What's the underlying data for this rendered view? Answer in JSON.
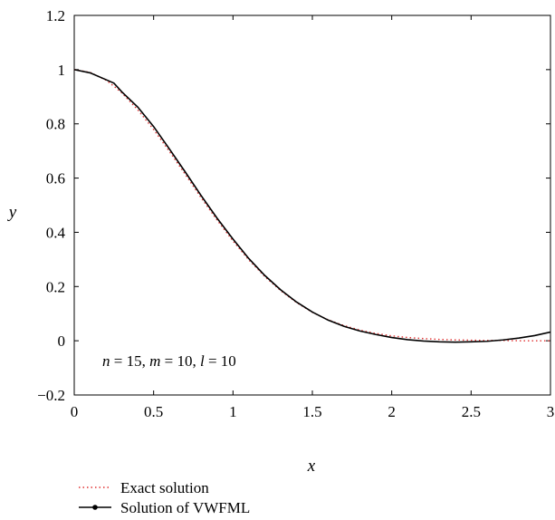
{
  "chart_data": {
    "type": "line",
    "xlabel": "x",
    "ylabel": "y",
    "xlim": [
      0,
      3
    ],
    "ylim": [
      -0.2,
      1.2
    ],
    "x_ticks": [
      "0",
      "0.5",
      "1",
      "1.5",
      "2",
      "2.5",
      "3"
    ],
    "y_ticks": [
      "1.2",
      "1",
      "0.8",
      "0.6",
      "0.4",
      "0.2",
      "0",
      "−0.2"
    ],
    "grid": false,
    "legend_position": "bottom-left, below plot",
    "annotation": {
      "parts": [
        {
          "text": "n",
          "italic": true
        },
        {
          "text": " = 15, ",
          "italic": false
        },
        {
          "text": "m",
          "italic": true
        },
        {
          "text": " = 10, ",
          "italic": false
        },
        {
          "text": "l",
          "italic": true
        },
        {
          "text": " = 10",
          "italic": false
        }
      ]
    },
    "series": [
      {
        "name": "Exact solution",
        "color": "#e03030",
        "style": "dotted",
        "x": [
          0,
          0.1,
          0.2,
          0.25,
          0.3,
          0.4,
          0.5,
          0.6,
          0.7,
          0.8,
          0.9,
          1.0,
          1.1,
          1.2,
          1.3,
          1.4,
          1.5,
          1.6,
          1.7,
          1.8,
          1.9,
          2.0,
          2.1,
          2.2,
          2.3,
          2.4,
          2.5,
          2.6,
          2.7,
          2.8,
          2.9,
          3.0
        ],
        "values": [
          1.0,
          0.99,
          0.961,
          0.939,
          0.914,
          0.852,
          0.779,
          0.698,
          0.613,
          0.527,
          0.445,
          0.368,
          0.298,
          0.237,
          0.185,
          0.141,
          0.105,
          0.077,
          0.056,
          0.039,
          0.027,
          0.018,
          0.012,
          0.008,
          0.005,
          0.003,
          0.002,
          0.001,
          0.001,
          0.0,
          0.0,
          0.0
        ]
      },
      {
        "name": "Solution of VWFML",
        "color": "#000000",
        "style": "solid",
        "x": [
          0,
          0.1,
          0.2,
          0.25,
          0.3,
          0.4,
          0.5,
          0.6,
          0.7,
          0.8,
          0.9,
          1.0,
          1.1,
          1.2,
          1.3,
          1.4,
          1.5,
          1.6,
          1.7,
          1.8,
          1.9,
          2.0,
          2.1,
          2.2,
          2.3,
          2.4,
          2.5,
          2.6,
          2.7,
          2.8,
          2.9,
          3.0
        ],
        "values": [
          1.0,
          0.988,
          0.963,
          0.95,
          0.918,
          0.862,
          0.79,
          0.707,
          0.622,
          0.535,
          0.452,
          0.375,
          0.303,
          0.241,
          0.188,
          0.143,
          0.106,
          0.076,
          0.053,
          0.036,
          0.023,
          0.012,
          0.004,
          -0.001,
          -0.004,
          -0.005,
          -0.004,
          -0.002,
          0.003,
          0.01,
          0.019,
          0.032
        ]
      }
    ]
  }
}
